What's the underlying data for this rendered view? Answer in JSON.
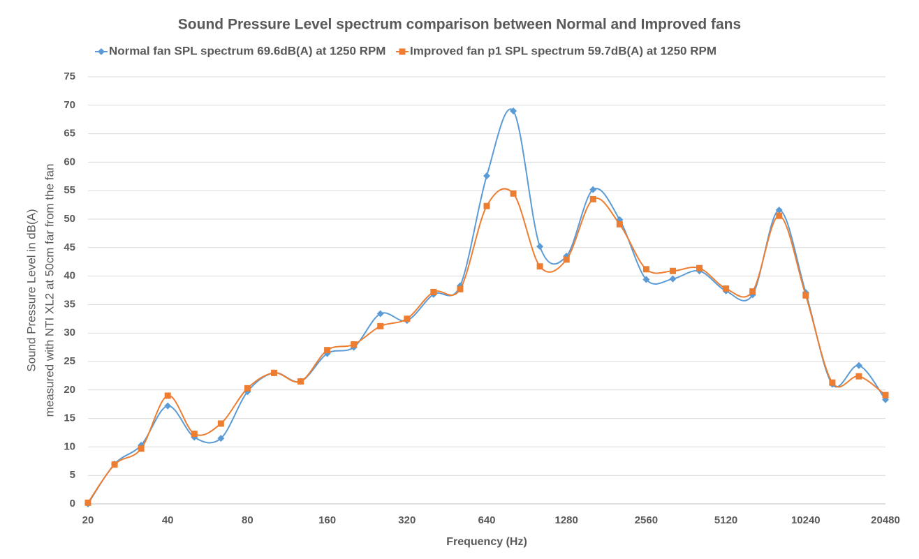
{
  "chart_data": {
    "type": "line",
    "title": "Sound Pressure Level spectrum comparison between Normal and Improved fans",
    "xlabel": "Frequency (Hz)",
    "ylabel": [
      "Sound Pressure Level in dB(A)",
      "measured with NTI XL2 at 50cm far from the fan"
    ],
    "categories": [
      20,
      null,
      null,
      40,
      null,
      null,
      80,
      null,
      null,
      160,
      null,
      null,
      320,
      null,
      null,
      640,
      null,
      null,
      1280,
      null,
      null,
      2560,
      null,
      null,
      5120,
      null,
      null,
      10240,
      null,
      null,
      20480
    ],
    "series": [
      {
        "name": "Normal fan SPL spectrum 69.6dB(A) at 1250 RPM",
        "color": "#5b9bd5",
        "marker": "diamond",
        "values": [
          0,
          7,
          10.3,
          17.2,
          11.7,
          11.5,
          19.7,
          23,
          21.5,
          26.4,
          27.5,
          33.4,
          32.2,
          36.8,
          38.3,
          57.6,
          69,
          45.2,
          43.5,
          55.2,
          49.9,
          39.4,
          39.5,
          40.9,
          37.4,
          36.7,
          51.6,
          37.1,
          21,
          24.3,
          18.3
        ]
      },
      {
        "name": "Improved fan p1 SPL spectrum 59.7dB(A) at 1250 RPM",
        "color": "#ed7d31",
        "marker": "square",
        "values": [
          0.2,
          6.9,
          9.7,
          19,
          12.3,
          14.1,
          20.3,
          23,
          21.5,
          27,
          28,
          31.2,
          32.5,
          37.2,
          37.7,
          52.3,
          54.5,
          41.7,
          42.9,
          53.5,
          49.1,
          41.2,
          40.9,
          41.4,
          37.8,
          37.3,
          50.6,
          36.6,
          21.3,
          22.4,
          19.1
        ]
      }
    ],
    "ylim": [
      0,
      75
    ],
    "yticks": [
      0,
      5,
      10,
      15,
      20,
      25,
      30,
      35,
      40,
      45,
      50,
      55,
      60,
      65,
      70,
      75
    ],
    "grid": true,
    "smooth": true,
    "legend": "top"
  }
}
